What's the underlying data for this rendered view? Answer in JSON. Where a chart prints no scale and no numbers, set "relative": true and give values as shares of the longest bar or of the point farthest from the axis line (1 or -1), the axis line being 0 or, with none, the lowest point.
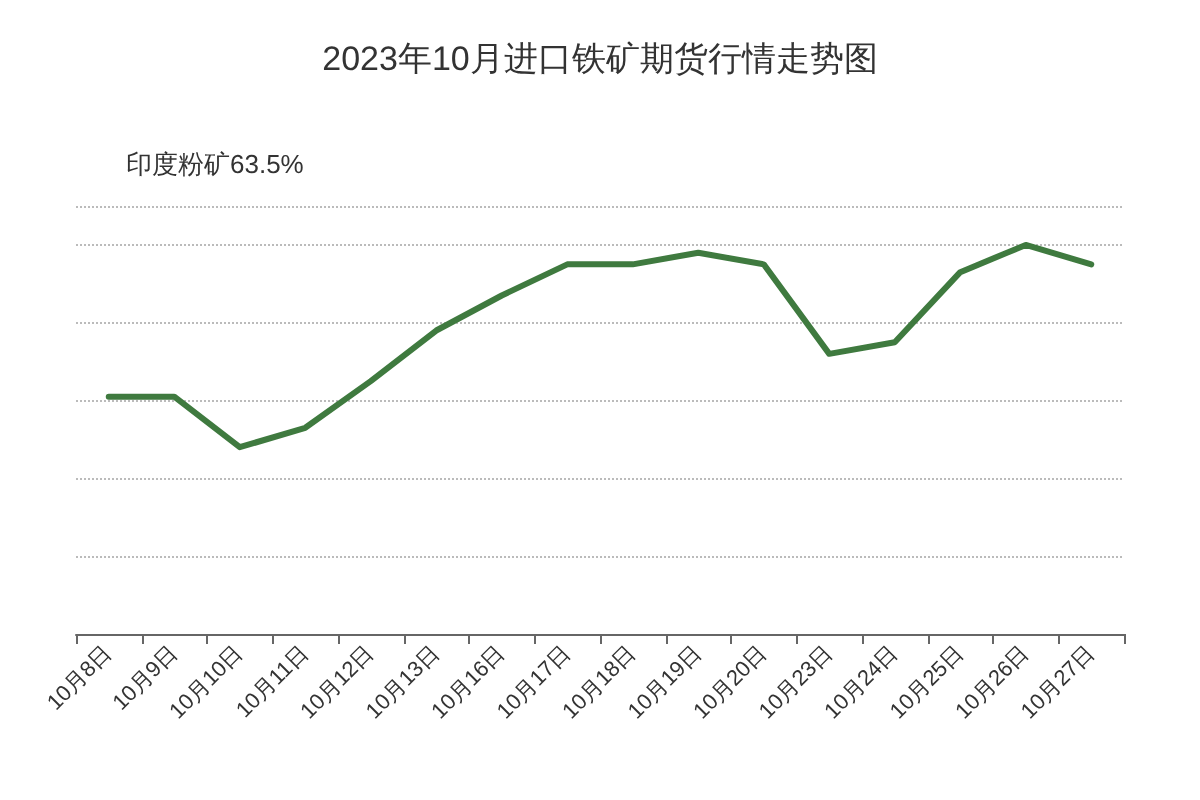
{
  "chart_data": {
    "type": "line",
    "title": "2023年10月进口铁矿期货行情走势图",
    "categories": [
      "10月8日",
      "10月9日",
      "10月10日",
      "10月11日",
      "10月12日",
      "10月13日",
      "10月16日",
      "10月17日",
      "10月18日",
      "10月19日",
      "10月20日",
      "10月23日",
      "10月24日",
      "10月25日",
      "10月26日",
      "10月27日"
    ],
    "series": [
      {
        "name": "印度粉矿63.5%",
        "color": "#3f7a3f",
        "values": [
          0.61,
          0.61,
          0.48,
          0.53,
          0.65,
          0.78,
          0.87,
          0.95,
          0.95,
          0.98,
          0.95,
          0.72,
          0.75,
          0.93,
          1,
          0.95
        ]
      }
    ],
    "relative": true,
    "grid": "y",
    "legend": "top left",
    "marker": "none",
    "line_style": "solid"
  }
}
